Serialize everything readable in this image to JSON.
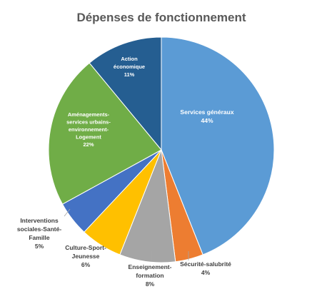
{
  "chart_data": {
    "type": "pie",
    "title": "Dépenses de fonctionnement",
    "start_angle_deg": 0,
    "direction": "clockwise",
    "slices": [
      {
        "label": [
          "Services généraux",
          "44%"
        ],
        "value": 44,
        "color": "#5B9BD5",
        "label_inside": true,
        "text_color": "#ffffff"
      },
      {
        "label": [
          "Sécurité-salubrité",
          "4%"
        ],
        "value": 4,
        "color": "#ED7D31",
        "label_inside": false,
        "text_color": "#404040"
      },
      {
        "label": [
          "Enseignement-",
          "formation",
          "8%"
        ],
        "value": 8,
        "color": "#A5A5A5",
        "label_inside": false,
        "text_color": "#404040"
      },
      {
        "label": [
          "Culture-Sport-",
          "Jeunesse",
          "6%"
        ],
        "value": 6,
        "color": "#FFC000",
        "label_inside": false,
        "text_color": "#404040"
      },
      {
        "label": [
          "Interventions",
          "sociales-Santé-",
          "Famille",
          "5%"
        ],
        "value": 5,
        "color": "#4472C4",
        "label_inside": false,
        "text_color": "#404040"
      },
      {
        "label": [
          "Aménagements-",
          "services urbains-",
          "environnement-",
          "Logement",
          "22%"
        ],
        "value": 22,
        "color": "#70AD47",
        "label_inside": true,
        "text_color": "#ffffff"
      },
      {
        "label": [
          "Action",
          "économique",
          "11%"
        ],
        "value": 11,
        "color": "#255E91",
        "label_inside": true,
        "text_color": "#ffffff"
      }
    ]
  }
}
